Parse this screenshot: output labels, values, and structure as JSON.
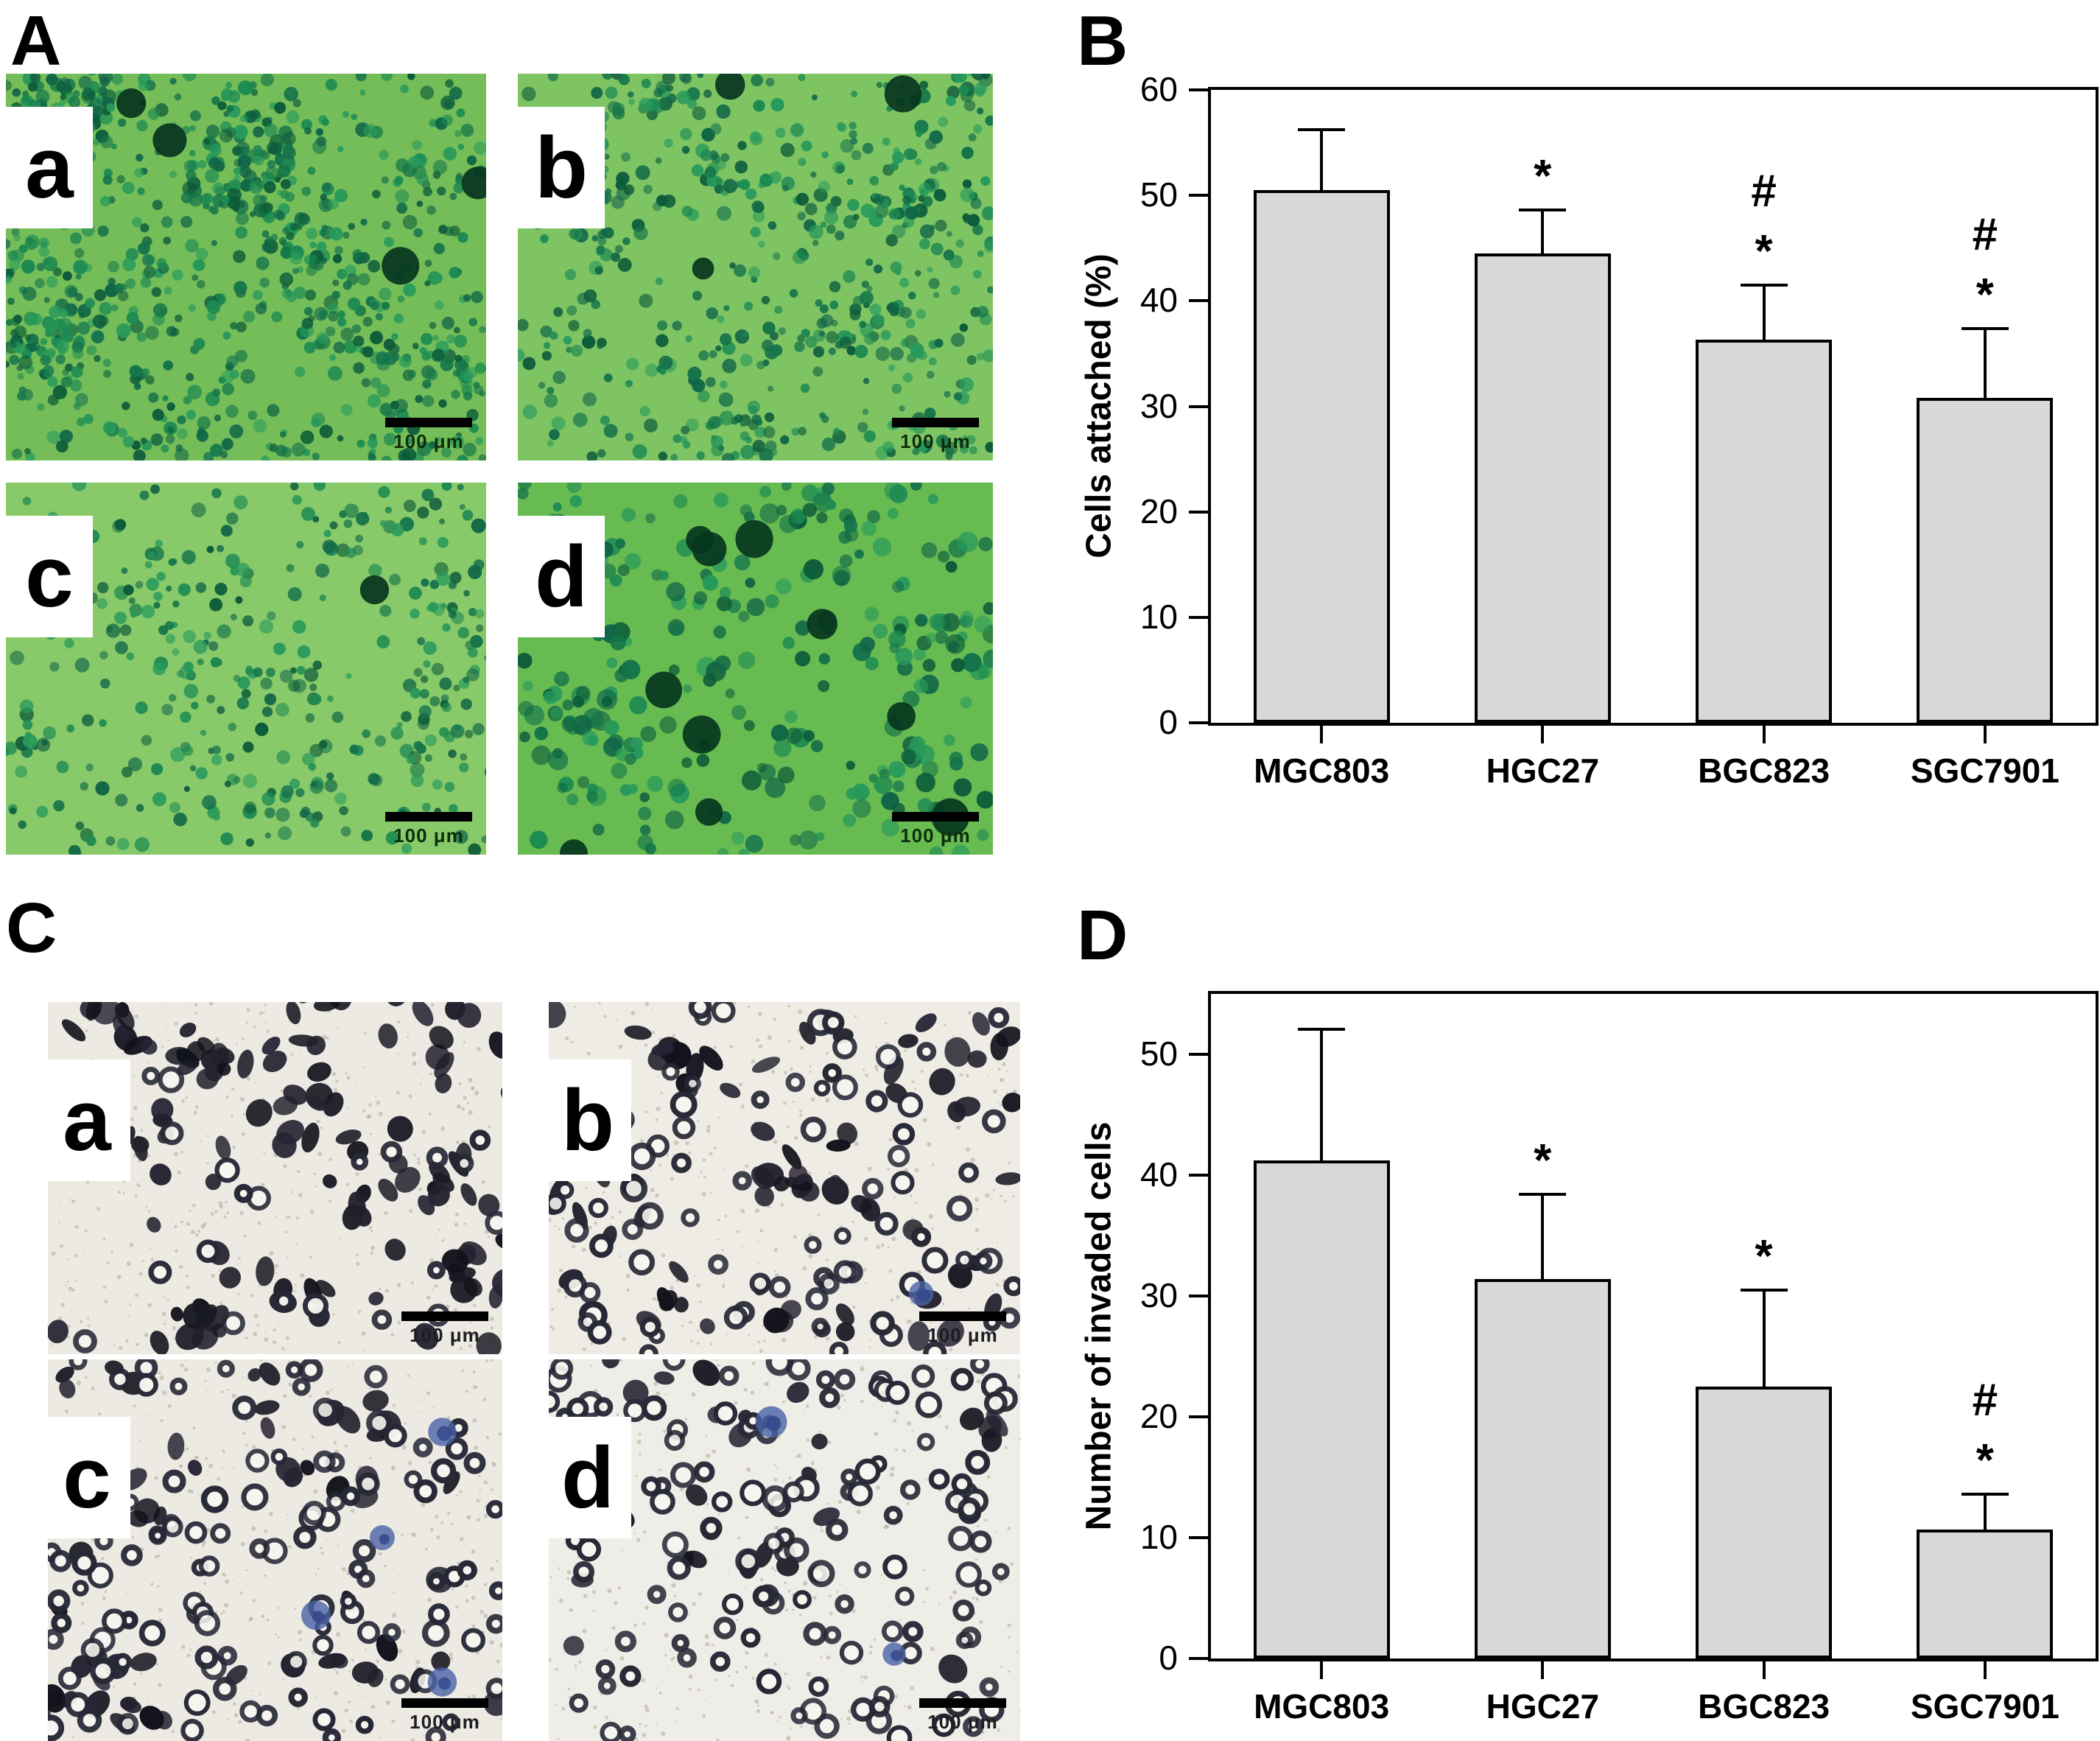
{
  "panels": {
    "A": {
      "letter": "A",
      "scalebar_text": "100 μm",
      "images": [
        {
          "label": "a"
        },
        {
          "label": "b"
        },
        {
          "label": "c"
        },
        {
          "label": "d"
        }
      ]
    },
    "B": {
      "letter": "B",
      "chart_data": {
        "type": "bar",
        "title": "",
        "xlabel": "",
        "ylabel": "Cells attached (%)",
        "categories": [
          "MGC803",
          "HGC27",
          "BGC823",
          "SGC7901"
        ],
        "values": [
          50.5,
          44.5,
          36.3,
          30.8
        ],
        "errors_up": [
          5.7,
          4.1,
          5.2,
          6.6
        ],
        "annotations": [
          [],
          [
            "*"
          ],
          [
            "#",
            "*"
          ],
          [
            "#",
            "*"
          ]
        ],
        "ylim": [
          0,
          60
        ],
        "yticks": [
          0,
          10,
          20,
          30,
          40,
          50,
          60
        ],
        "grid": "off",
        "legend": "none",
        "bar_color": "#d8d8d8",
        "bar_border_color": "#000000"
      }
    },
    "C": {
      "letter": "C",
      "scalebar_text": "100 μm",
      "images": [
        {
          "label": "a"
        },
        {
          "label": "b"
        },
        {
          "label": "c"
        },
        {
          "label": "d"
        }
      ]
    },
    "D": {
      "letter": "D",
      "chart_data": {
        "type": "bar",
        "title": "",
        "xlabel": "",
        "ylabel": "Number of invaded cells",
        "categories": [
          "MGC803",
          "HGC27",
          "BGC823",
          "SGC7901"
        ],
        "values": [
          41.2,
          31.4,
          22.5,
          10.7
        ],
        "errors_up": [
          10.9,
          7.0,
          8.0,
          2.9
        ],
        "annotations": [
          [],
          [
            "*"
          ],
          [
            "*"
          ],
          [
            "#",
            "*"
          ]
        ],
        "ylim": [
          0,
          55
        ],
        "yticks": [
          0,
          10,
          20,
          30,
          40,
          50
        ],
        "grid": "off",
        "legend": "none",
        "bar_color": "#d8d8d8",
        "bar_border_color": "#000000"
      }
    }
  }
}
